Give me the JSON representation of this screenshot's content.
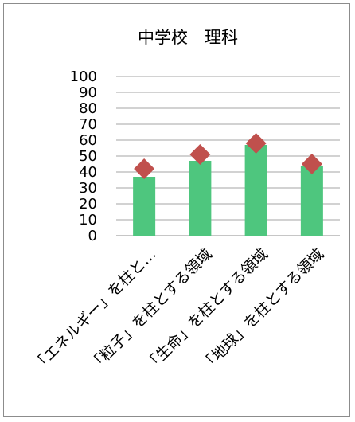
{
  "chart_data": {
    "type": "bar",
    "title": "中学校　理科",
    "categories": [
      "「エネルギー」を柱と…",
      "「粒子」を柱とする領域",
      "「生命」を柱とする領域",
      "「地球」を柱とする領域"
    ],
    "series": [
      {
        "type": "bar",
        "values": [
          37,
          47,
          57,
          44
        ],
        "color": "#4ec67e"
      },
      {
        "type": "marker",
        "marker": "diamond",
        "values": [
          42,
          51,
          58,
          45
        ],
        "color": "#c0504d"
      }
    ],
    "ylim": [
      0,
      100
    ],
    "yticks": [
      0,
      10,
      20,
      30,
      40,
      50,
      60,
      70,
      80,
      90,
      100
    ],
    "grid": true,
    "legend": "none"
  }
}
